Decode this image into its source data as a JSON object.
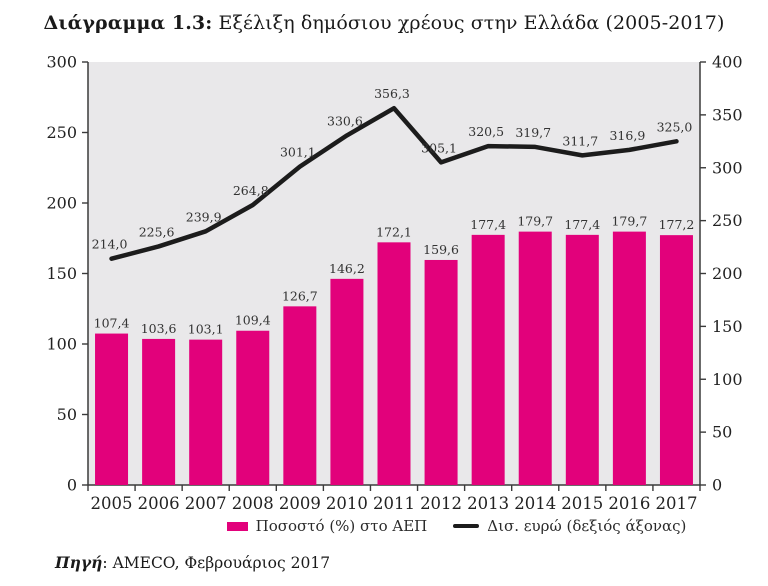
{
  "title": {
    "prefix": "Διάγραμμα 1.3:",
    "rest": " Εξέλιξη δημόσιου χρέους στην Ελλάδα (2005-2017)"
  },
  "source": {
    "label": "Πηγή",
    "rest": ": AMECO, Φεβρουάριος 2017"
  },
  "colors": {
    "bar": "#e2017b",
    "line": "#1c1c1c",
    "plot_background": "#e9e8ea",
    "axis": "#3a3a3a",
    "tick_text": "#222222",
    "data_label": "#333333"
  },
  "chart_data": {
    "type": "bar",
    "subtype": "bar+line combo, dual axis",
    "categories": [
      "2005",
      "2006",
      "2007",
      "2008",
      "2009",
      "2010",
      "2011",
      "2012",
      "2013",
      "2014",
      "2015",
      "2016",
      "2017"
    ],
    "series": [
      {
        "name": "Ποσοστό (%) στο ΑΕΠ",
        "type": "bar",
        "axis": "left",
        "color": "#e2017b",
        "values": [
          107.4,
          103.6,
          103.1,
          109.4,
          126.7,
          146.2,
          172.1,
          159.6,
          177.4,
          179.7,
          177.4,
          179.7,
          177.2
        ]
      },
      {
        "name": "Δισ. ευρώ (δεξιός άξονας)",
        "type": "line",
        "axis": "right",
        "color": "#1c1c1c",
        "values": [
          214.0,
          225.6,
          239.9,
          264.8,
          301.1,
          330.6,
          356.3,
          305.1,
          320.5,
          319.7,
          311.7,
          316.9,
          325.0
        ]
      }
    ],
    "left_axis": {
      "min": 0,
      "max": 300,
      "step": 50
    },
    "right_axis": {
      "min": 0,
      "max": 400,
      "step": 50
    },
    "decimal_separator": ",",
    "grid": false,
    "legend_position": "bottom",
    "data_labels": true
  }
}
